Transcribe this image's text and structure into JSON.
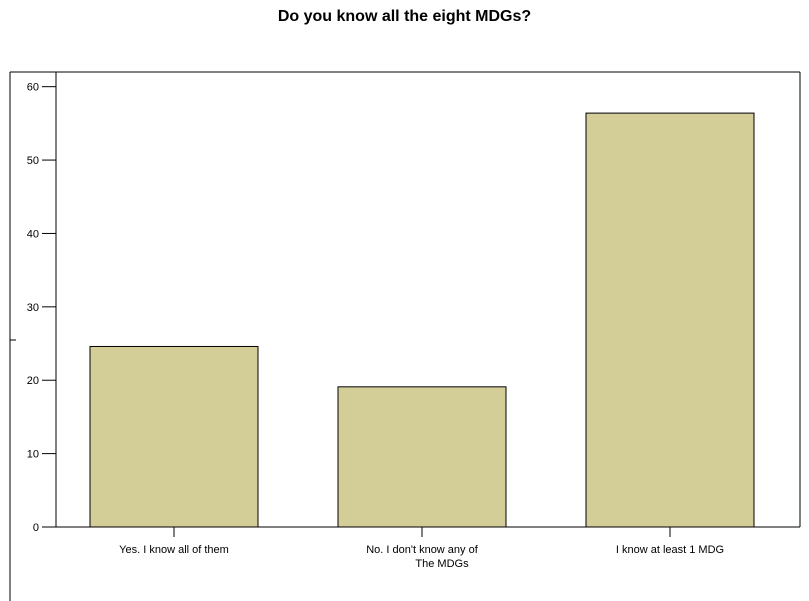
{
  "chart_data": {
    "type": "bar",
    "title": "Do you know all the eight MDGs?",
    "xlabel": "",
    "ylabel": "",
    "ylim": [
      0,
      62
    ],
    "yticks": [
      0,
      10,
      20,
      30,
      40,
      50,
      60
    ],
    "categories": [
      [
        "Yes. I know all of them"
      ],
      [
        "No. I don't know any of",
        "The MDGs"
      ],
      [
        "I know at least 1 MDG"
      ]
    ],
    "values": [
      24.6,
      19.1,
      56.4
    ],
    "grid": false,
    "legend": "none",
    "colors": {
      "bar_fill": "#d3cd98",
      "bar_stroke": "#000000",
      "axis": "#000000",
      "background": "#ffffff"
    }
  }
}
